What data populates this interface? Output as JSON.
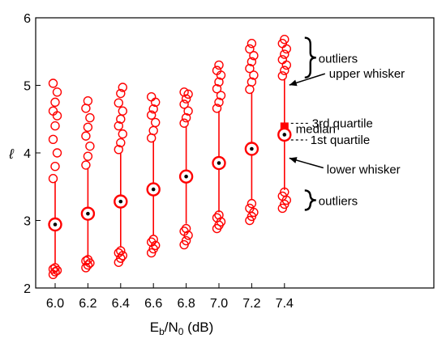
{
  "chart_data": {
    "type": "boxplot",
    "title": "",
    "xlabel": {
      "main": "E",
      "sub1": "b",
      "mid": "/N",
      "sub2": "0",
      "tail": " (dB)"
    },
    "ylabel": "ℓ",
    "ylim": [
      2,
      6
    ],
    "yticks": [
      "2",
      "3",
      "4",
      "5",
      "6"
    ],
    "categories": [
      "6.0",
      "6.2",
      "6.4",
      "6.6",
      "6.8",
      "7.0",
      "7.2",
      "7.4"
    ],
    "x": [
      6.0,
      6.2,
      6.4,
      6.6,
      6.8,
      7.0,
      7.2,
      7.4
    ],
    "median": [
      2.94,
      3.1,
      3.28,
      3.46,
      3.65,
      3.85,
      4.06,
      4.27
    ],
    "q1": [
      2.86,
      3.02,
      3.2,
      3.38,
      3.57,
      3.77,
      3.98,
      4.18
    ],
    "q3": [
      3.02,
      3.18,
      3.36,
      3.54,
      3.73,
      3.93,
      4.14,
      4.45
    ],
    "whisker_low": [
      2.35,
      2.45,
      2.6,
      2.78,
      2.95,
      3.12,
      3.3,
      3.45
    ],
    "whisker_high": [
      3.58,
      3.78,
      4.0,
      4.18,
      4.4,
      4.62,
      4.9,
      5.1
    ],
    "outliers_low": [
      [
        2.2,
        2.24,
        2.26,
        2.28,
        2.3
      ],
      [
        2.3,
        2.34,
        2.37,
        2.4,
        2.42
      ],
      [
        2.38,
        2.44,
        2.48,
        2.52,
        2.55
      ],
      [
        2.52,
        2.58,
        2.63,
        2.68,
        2.72
      ],
      [
        2.64,
        2.7,
        2.78,
        2.84,
        2.88
      ],
      [
        2.88,
        2.93,
        2.98,
        3.04,
        3.08
      ],
      [
        3.0,
        3.06,
        3.12,
        3.18,
        3.25
      ],
      [
        3.18,
        3.24,
        3.3,
        3.36,
        3.42
      ]
    ],
    "outliers_high": [
      [
        3.62,
        3.8,
        4.0,
        4.2,
        4.4,
        4.55,
        4.62,
        4.75,
        4.9,
        5.03
      ],
      [
        3.82,
        3.95,
        4.1,
        4.25,
        4.38,
        4.52,
        4.66,
        4.77
      ],
      [
        4.05,
        4.15,
        4.28,
        4.4,
        4.5,
        4.62,
        4.74,
        4.88,
        4.97
      ],
      [
        4.22,
        4.33,
        4.45,
        4.56,
        4.65,
        4.75,
        4.83
      ],
      [
        4.44,
        4.52,
        4.62,
        4.72,
        4.8,
        4.87,
        4.9
      ],
      [
        4.66,
        4.75,
        4.85,
        4.95,
        5.05,
        5.15,
        5.22,
        5.3
      ],
      [
        4.94,
        5.05,
        5.15,
        5.25,
        5.35,
        5.44,
        5.54,
        5.62
      ],
      [
        5.14,
        5.22,
        5.3,
        5.38,
        5.46,
        5.54,
        5.62,
        5.68
      ]
    ],
    "series_color": "#ff0000",
    "annotations": {
      "outliers_top": "outliers",
      "upper_whisker": "upper whisker",
      "q3": "3rd quartile",
      "median": "median",
      "q1": "1st quartile",
      "lower_whisker": "lower whisker",
      "outliers_bottom": "outliers"
    },
    "grid": false,
    "legend": "none"
  }
}
